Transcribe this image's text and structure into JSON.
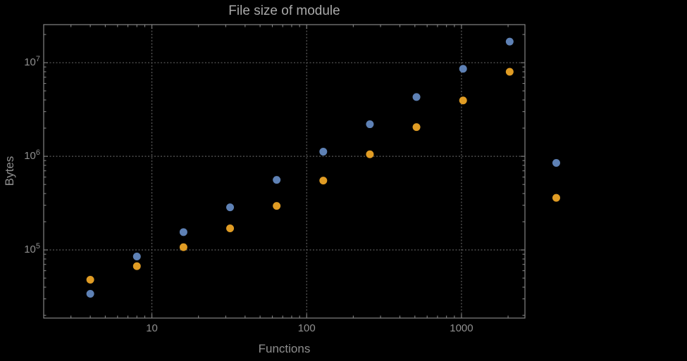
{
  "title": "File size of module",
  "chart_data": {
    "type": "scatter",
    "title": "File size of module",
    "xlabel": "Functions",
    "ylabel": "Bytes",
    "x_scale": "log",
    "y_scale": "log",
    "xlim": [
      2,
      2570
    ],
    "ylim": [
      18700,
      25500000
    ],
    "grid": true,
    "legend": "none",
    "x": [
      4,
      8,
      16,
      32,
      64,
      128,
      256,
      512,
      1024,
      2048,
      4096
    ],
    "series": [
      {
        "name": "blue",
        "color": "#5e81b5",
        "values": [
          34000,
          85000,
          155000,
          285000,
          560000,
          1120000,
          2200000,
          4300000,
          8600000,
          16800000,
          850000
        ]
      },
      {
        "name": "orange",
        "color": "#e09c24",
        "values": [
          48000,
          67000,
          107000,
          170000,
          295000,
          550000,
          1050000,
          2050000,
          3950000,
          8000000,
          360000
        ]
      }
    ],
    "x_ticks": [
      {
        "value": 10,
        "label": "10"
      },
      {
        "value": 100,
        "label": "100"
      },
      {
        "value": 1000,
        "label": "1000"
      }
    ],
    "y_ticks": [
      {
        "value": 100000,
        "base": "10",
        "exp": "5"
      },
      {
        "value": 1000000,
        "base": "10",
        "exp": "6"
      },
      {
        "value": 10000000,
        "base": "10",
        "exp": "7"
      }
    ]
  },
  "colors": {
    "background": "#000000",
    "frame": "#848484",
    "grid": "#5f5f5f",
    "tick_label": "#8f8f8f",
    "axis_label": "#8f8f8f",
    "title": "#a9a9a9"
  }
}
